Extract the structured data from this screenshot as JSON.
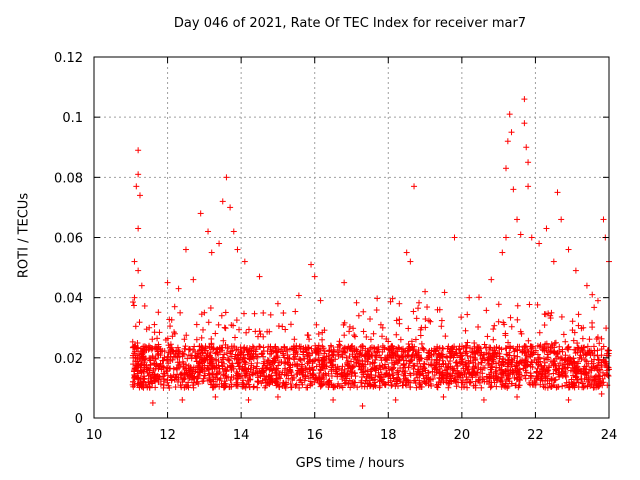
{
  "chart_data": {
    "type": "scatter",
    "title": "Day 046 of 2021, Rate Of TEC Index for receiver mar7",
    "xlabel": "GPS time / hours",
    "ylabel": "ROTI / TECUs",
    "xlim": [
      10,
      24
    ],
    "ylim": [
      0,
      0.12
    ],
    "xticks": [
      10,
      12,
      14,
      16,
      18,
      20,
      22,
      24
    ],
    "yticks": [
      0,
      0.02,
      0.04,
      0.06,
      0.08,
      0.1,
      0.12
    ],
    "ytick_labels": [
      "0",
      "0.02",
      "0.04",
      "0.06",
      "0.08",
      "0.1",
      "0.12"
    ],
    "grid": true,
    "marker": "+",
    "color": "#ff0000",
    "series": [
      {
        "name": "ROTI",
        "points": [
          [
            11.2,
            0.089
          ],
          [
            11.2,
            0.081
          ],
          [
            11.15,
            0.077
          ],
          [
            11.25,
            0.074
          ],
          [
            11.2,
            0.063
          ],
          [
            11.1,
            0.052
          ],
          [
            11.2,
            0.049
          ],
          [
            11.3,
            0.044
          ],
          [
            11.1,
            0.04
          ],
          [
            12.0,
            0.045
          ],
          [
            12.3,
            0.043
          ],
          [
            12.5,
            0.056
          ],
          [
            12.7,
            0.046
          ],
          [
            12.9,
            0.068
          ],
          [
            13.1,
            0.062
          ],
          [
            13.2,
            0.055
          ],
          [
            13.4,
            0.058
          ],
          [
            13.5,
            0.072
          ],
          [
            13.6,
            0.08
          ],
          [
            13.7,
            0.07
          ],
          [
            13.8,
            0.062
          ],
          [
            13.9,
            0.056
          ],
          [
            14.1,
            0.052
          ],
          [
            14.5,
            0.047
          ],
          [
            15.0,
            0.038
          ],
          [
            15.9,
            0.051
          ],
          [
            16.0,
            0.047
          ],
          [
            16.8,
            0.045
          ],
          [
            17.2,
            0.034
          ],
          [
            17.8,
            0.031
          ],
          [
            18.3,
            0.038
          ],
          [
            18.5,
            0.055
          ],
          [
            18.6,
            0.052
          ],
          [
            18.7,
            0.077
          ],
          [
            19.0,
            0.042
          ],
          [
            19.4,
            0.036
          ],
          [
            19.8,
            0.06
          ],
          [
            20.2,
            0.04
          ],
          [
            20.8,
            0.046
          ],
          [
            21.1,
            0.055
          ],
          [
            21.2,
            0.06
          ],
          [
            21.2,
            0.083
          ],
          [
            21.25,
            0.092
          ],
          [
            21.3,
            0.101
          ],
          [
            21.35,
            0.095
          ],
          [
            21.4,
            0.076
          ],
          [
            21.5,
            0.066
          ],
          [
            21.6,
            0.061
          ],
          [
            21.7,
            0.106
          ],
          [
            21.7,
            0.098
          ],
          [
            21.75,
            0.09
          ],
          [
            21.8,
            0.085
          ],
          [
            21.8,
            0.077
          ],
          [
            21.9,
            0.06
          ],
          [
            22.1,
            0.058
          ],
          [
            22.3,
            0.063
          ],
          [
            22.5,
            0.052
          ],
          [
            22.6,
            0.075
          ],
          [
            22.7,
            0.066
          ],
          [
            22.9,
            0.056
          ],
          [
            23.1,
            0.049
          ],
          [
            23.4,
            0.044
          ],
          [
            23.7,
            0.039
          ],
          [
            23.85,
            0.066
          ],
          [
            23.9,
            0.06
          ],
          [
            24.0,
            0.052
          ],
          [
            11.1,
            0.011
          ],
          [
            11.6,
            0.005
          ],
          [
            12.4,
            0.006
          ],
          [
            13.3,
            0.007
          ],
          [
            14.2,
            0.006
          ],
          [
            15.0,
            0.007
          ],
          [
            16.5,
            0.006
          ],
          [
            17.3,
            0.004
          ],
          [
            18.2,
            0.006
          ],
          [
            19.5,
            0.007
          ],
          [
            20.6,
            0.006
          ],
          [
            21.5,
            0.007
          ],
          [
            22.9,
            0.006
          ],
          [
            23.8,
            0.008
          ],
          [
            11.5,
            0.03
          ],
          [
            12.2,
            0.028
          ],
          [
            13.0,
            0.035
          ],
          [
            14.6,
            0.027
          ],
          [
            15.5,
            0.024
          ],
          [
            16.2,
            0.026
          ],
          [
            17.6,
            0.028
          ],
          [
            18.9,
            0.03
          ],
          [
            20.1,
            0.029
          ],
          [
            21.0,
            0.032
          ],
          [
            22.4,
            0.034
          ],
          [
            23.3,
            0.03
          ]
        ]
      }
    ]
  }
}
